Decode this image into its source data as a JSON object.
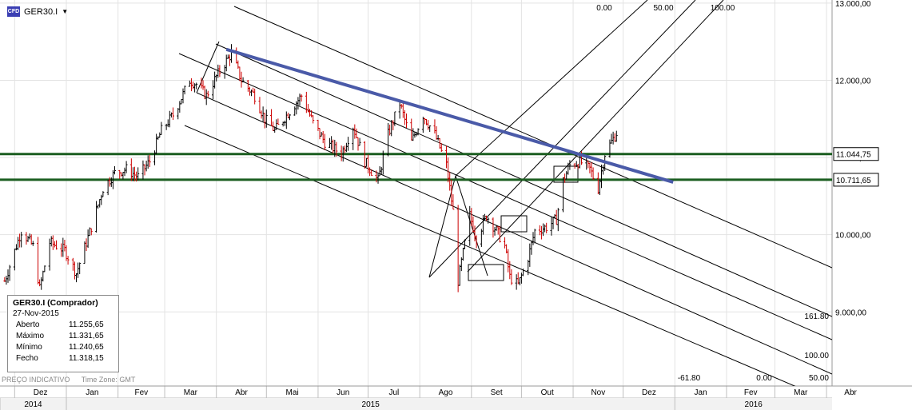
{
  "header": {
    "symbol": "GER30.I",
    "icon_text": "CFD"
  },
  "info_box": {
    "title": "GER30.I (Comprador)",
    "date": "27-Nov-2015",
    "rows": [
      {
        "label": "Aberto",
        "value": "11.255,65"
      },
      {
        "label": "Máximo",
        "value": "11.331,65"
      },
      {
        "label": "Mínimo",
        "value": "11.240,65"
      },
      {
        "label": "Fecho",
        "value": "11.318,15"
      }
    ]
  },
  "footer": {
    "left_note": "PREÇO INDICATIVO",
    "timezone": "Time Zone: GMT"
  },
  "colors": {
    "trendline": "#4a5aa8",
    "hline": "#1b5e20",
    "bull": "#000000",
    "bear": "#cc0000"
  },
  "chart_data": {
    "type": "ohlc",
    "symbol": "GER30.I",
    "x_months": [
      {
        "label": "Dez",
        "year": 2014
      },
      {
        "label": "Jan",
        "year": 2015
      },
      {
        "label": "Fev",
        "year": 2015
      },
      {
        "label": "Mar",
        "year": 2015
      },
      {
        "label": "Abr",
        "year": 2015
      },
      {
        "label": "Mai",
        "year": 2015
      },
      {
        "label": "Jun",
        "year": 2015
      },
      {
        "label": "Jul",
        "year": 2015
      },
      {
        "label": "Ago",
        "year": 2015
      },
      {
        "label": "Set",
        "year": 2015
      },
      {
        "label": "Out",
        "year": 2015
      },
      {
        "label": "Nov",
        "year": 2015
      },
      {
        "label": "Dez",
        "year": 2015
      },
      {
        "label": "Jan",
        "year": 2016
      },
      {
        "label": "Fev",
        "year": 2016
      },
      {
        "label": "Mar",
        "year": 2016
      },
      {
        "label": "Abr",
        "year": 2016
      }
    ],
    "years": [
      "2014",
      "2015",
      "2016"
    ],
    "y_ticks": [
      {
        "value": 9000,
        "label": "9.000,00"
      },
      {
        "value": 10000,
        "label": "10.000,00"
      },
      {
        "value": 11000,
        "label": "11.000,00"
      },
      {
        "value": 12000,
        "label": "12.000,00"
      },
      {
        "value": 13000,
        "label": "13.000,00"
      }
    ],
    "ylim": [
      8040,
      13040
    ],
    "horizontal_lines": [
      {
        "value": 11044.75,
        "label": "11.044,75"
      },
      {
        "value": 10711.65,
        "label": "10.711,65"
      }
    ],
    "trendline": {
      "from": [
        "2015-04-07",
        12400
      ],
      "to": [
        "2015-12-31",
        10680
      ]
    },
    "fib_labels": [
      "0.00",
      "50.00",
      "100.00",
      "161.80",
      "100.00",
      "50.00",
      "-61.80",
      "0.00"
    ],
    "price_path": [
      [
        "2014-11-25",
        9400
      ],
      [
        "2014-12-05",
        10050
      ],
      [
        "2014-12-12",
        9850
      ],
      [
        "2014-12-16",
        9300
      ],
      [
        "2014-12-22",
        9900
      ],
      [
        "2014-12-31",
        9800
      ],
      [
        "2015-01-07",
        9500
      ],
      [
        "2015-01-16",
        10100
      ],
      [
        "2015-01-23",
        10600
      ],
      [
        "2015-01-30",
        10800
      ],
      [
        "2015-02-06",
        10850
      ],
      [
        "2015-02-13",
        10750
      ],
      [
        "2015-02-20",
        10950
      ],
      [
        "2015-02-27",
        11350
      ],
      [
        "2015-03-06",
        11550
      ],
      [
        "2015-03-16",
        12000
      ],
      [
        "2015-03-20",
        11950
      ],
      [
        "2015-03-26",
        11800
      ],
      [
        "2015-04-01",
        12050
      ],
      [
        "2015-04-10",
        12350
      ],
      [
        "2015-04-16",
        12000
      ],
      [
        "2015-04-24",
        11800
      ],
      [
        "2015-04-30",
        11500
      ],
      [
        "2015-05-06",
        11350
      ],
      [
        "2015-05-15",
        11600
      ],
      [
        "2015-05-22",
        11800
      ],
      [
        "2015-05-29",
        11450
      ],
      [
        "2015-06-05",
        11200
      ],
      [
        "2015-06-15",
        11050
      ],
      [
        "2015-06-22",
        11400
      ],
      [
        "2015-06-29",
        10950
      ],
      [
        "2015-07-07",
        10700
      ],
      [
        "2015-07-13",
        11300
      ],
      [
        "2015-07-20",
        11700
      ],
      [
        "2015-07-27",
        11200
      ],
      [
        "2015-08-03",
        11550
      ],
      [
        "2015-08-10",
        11300
      ],
      [
        "2015-08-17",
        10900
      ],
      [
        "2015-08-21",
        10300
      ],
      [
        "2015-08-24",
        9400
      ],
      [
        "2015-08-31",
        10250
      ],
      [
        "2015-09-04",
        9950
      ],
      [
        "2015-09-10",
        10250
      ],
      [
        "2015-09-16",
        10050
      ],
      [
        "2015-09-21",
        9850
      ],
      [
        "2015-09-24",
        9450
      ],
      [
        "2015-09-29",
        9350
      ],
      [
        "2015-10-05",
        9700
      ],
      [
        "2015-10-09",
        10050
      ],
      [
        "2015-10-16",
        10100
      ],
      [
        "2015-10-22",
        10200
      ],
      [
        "2015-10-26",
        10700
      ],
      [
        "2015-10-30",
        10900
      ],
      [
        "2015-11-05",
        10950
      ],
      [
        "2015-11-11",
        10850
      ],
      [
        "2015-11-16",
        10600
      ],
      [
        "2015-11-20",
        11050
      ],
      [
        "2015-11-27",
        11318
      ]
    ]
  }
}
